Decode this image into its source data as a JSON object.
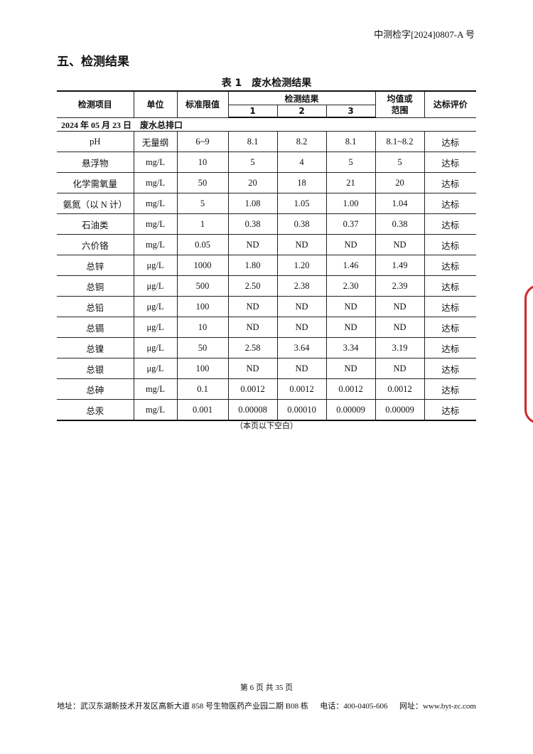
{
  "header": {
    "report_no": "中测检字[2024]0807-A 号"
  },
  "section_title": "五、检测结果",
  "table": {
    "caption": "表 1　废水检测结果",
    "headers": {
      "item": "检测项目",
      "unit": "单位",
      "limit": "标准限值",
      "results": "检测结果",
      "r1": "1",
      "r2": "2",
      "r3": "3",
      "mean": "均值或范围",
      "eval": "达标评价"
    },
    "group": "2024 年 05 月 23 日　废水总排口",
    "rows": [
      [
        "pH",
        "无量纲",
        "6~9",
        "8.1",
        "8.2",
        "8.1",
        "8.1~8.2",
        "达标"
      ],
      [
        "悬浮物",
        "mg/L",
        "10",
        "5",
        "4",
        "5",
        "5",
        "达标"
      ],
      [
        "化学需氧量",
        "mg/L",
        "50",
        "20",
        "18",
        "21",
        "20",
        "达标"
      ],
      [
        "氨氮（以 N 计）",
        "mg/L",
        "5",
        "1.08",
        "1.05",
        "1.00",
        "1.04",
        "达标"
      ],
      [
        "石油类",
        "mg/L",
        "1",
        "0.38",
        "0.38",
        "0.37",
        "0.38",
        "达标"
      ],
      [
        "六价铬",
        "mg/L",
        "0.05",
        "ND",
        "ND",
        "ND",
        "ND",
        "达标"
      ],
      [
        "总锌",
        "μg/L",
        "1000",
        "1.80",
        "1.20",
        "1.46",
        "1.49",
        "达标"
      ],
      [
        "总铜",
        "μg/L",
        "500",
        "2.50",
        "2.38",
        "2.30",
        "2.39",
        "达标"
      ],
      [
        "总铅",
        "μg/L",
        "100",
        "ND",
        "ND",
        "ND",
        "ND",
        "达标"
      ],
      [
        "总镉",
        "μg/L",
        "10",
        "ND",
        "ND",
        "ND",
        "ND",
        "达标"
      ],
      [
        "总镍",
        "μg/L",
        "50",
        "2.58",
        "3.64",
        "3.34",
        "3.19",
        "达标"
      ],
      [
        "总银",
        "μg/L",
        "100",
        "ND",
        "ND",
        "ND",
        "ND",
        "达标"
      ],
      [
        "总砷",
        "mg/L",
        "0.1",
        "0.0012",
        "0.0012",
        "0.0012",
        "0.0012",
        "达标"
      ],
      [
        "总汞",
        "mg/L",
        "0.001",
        "0.00008",
        "0.00010",
        "0.00009",
        "0.00009",
        "达标"
      ]
    ]
  },
  "note": "（本页以下空白）",
  "page_number": "第 6 页 共 35 页",
  "footer": {
    "address": "地址：武汉东湖新技术开发区高新大道 858 号生物医药产业园二期 B08 栋",
    "phone": "电话：400-0405-606",
    "website": "网址：www.byt-zc.com"
  },
  "stamp_color": "#d0262b"
}
